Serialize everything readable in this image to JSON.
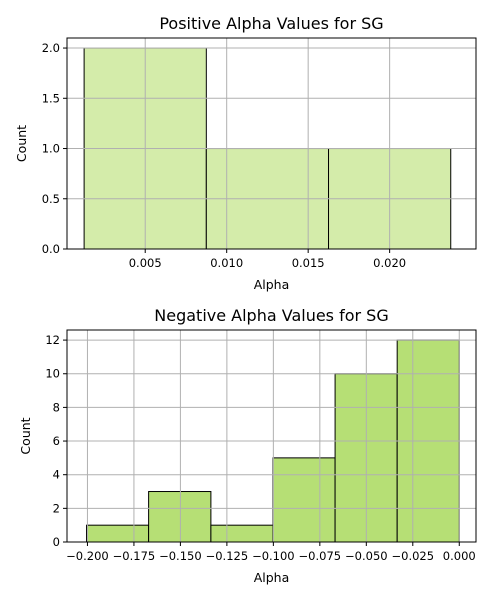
{
  "chart_data": [
    {
      "type": "bar",
      "title": "Positive Alpha Values for SG",
      "xlabel": "Alpha",
      "ylabel": "Count",
      "bins": [
        {
          "x0": 0.00125,
          "x1": 0.00875,
          "count": 2
        },
        {
          "x0": 0.00875,
          "x1": 0.01625,
          "count": 1
        },
        {
          "x0": 0.01625,
          "x1": 0.02375,
          "count": 1
        }
      ],
      "xlim": [
        0.0002,
        0.0253
      ],
      "ylim": [
        0,
        2.1
      ],
      "xticks": [
        0.005,
        0.01,
        0.015,
        0.02
      ],
      "xtick_labels": [
        "0.005",
        "0.010",
        "0.015",
        "0.020"
      ],
      "yticks": [
        0,
        0.5,
        1.0,
        1.5,
        2.0
      ],
      "ytick_labels": [
        "0.0",
        "0.5",
        "1.0",
        "1.5",
        "2.0"
      ],
      "grid": true,
      "color": "#d4ecaa"
    },
    {
      "type": "bar",
      "title": "Negative Alpha Values for SG",
      "xlabel": "Alpha",
      "ylabel": "Count",
      "bins": [
        {
          "x0": -0.2005,
          "x1": -0.1671,
          "count": 1
        },
        {
          "x0": -0.1671,
          "x1": -0.1336,
          "count": 3
        },
        {
          "x0": -0.1336,
          "x1": -0.1002,
          "count": 1
        },
        {
          "x0": -0.1002,
          "x1": -0.0668,
          "count": 5
        },
        {
          "x0": -0.0668,
          "x1": -0.0334,
          "count": 10
        },
        {
          "x0": -0.0334,
          "x1": 0.0,
          "count": 12
        }
      ],
      "xlim": [
        -0.211,
        0.009
      ],
      "ylim": [
        0,
        12.6
      ],
      "xticks": [
        -0.2,
        -0.175,
        -0.15,
        -0.125,
        -0.1,
        -0.075,
        -0.05,
        -0.025,
        0.0
      ],
      "xtick_labels": [
        "−0.200",
        "−0.175",
        "−0.150",
        "−0.125",
        "−0.100",
        "−0.075",
        "−0.050",
        "−0.025",
        "0.000"
      ],
      "yticks": [
        0,
        2,
        4,
        6,
        8,
        10,
        12
      ],
      "ytick_labels": [
        "0",
        "2",
        "4",
        "6",
        "8",
        "10",
        "12"
      ],
      "grid": true,
      "color": "#b6df75"
    }
  ]
}
